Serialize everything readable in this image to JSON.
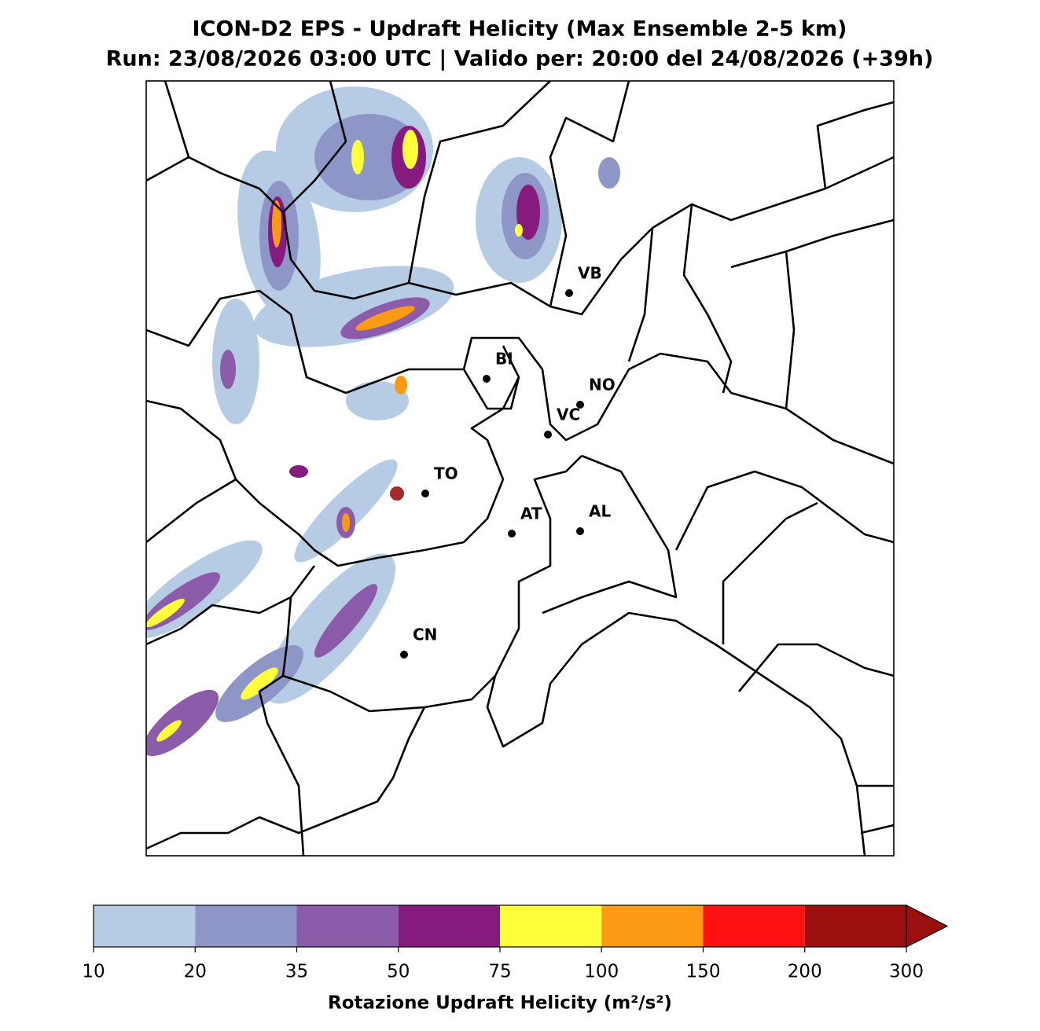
{
  "title": [
    "ICON-D2 EPS - Updraft Helicity (Max Ensemble 2-5 km)",
    "Run: 23/08/2026 03:00 UTC | Valido per: 20:00 del 24/08/2026 (+39h)"
  ],
  "cities": [
    "VB",
    "BI",
    "NO",
    "VC",
    "TO",
    "AT",
    "AL",
    "CN"
  ],
  "colorbar": {
    "label": "Rotazione Updraft Helicity (m²/s²)",
    "bounds": [
      10,
      20,
      35,
      50,
      75,
      100,
      150,
      200,
      300
    ],
    "colors": [
      "#b6cce4",
      "#8e96c8",
      "#8c5ba9",
      "#861a7e",
      "#ffff3c",
      "#fb9a14",
      "#fd1111",
      "#9b0f0f"
    ],
    "extend": "max"
  }
}
